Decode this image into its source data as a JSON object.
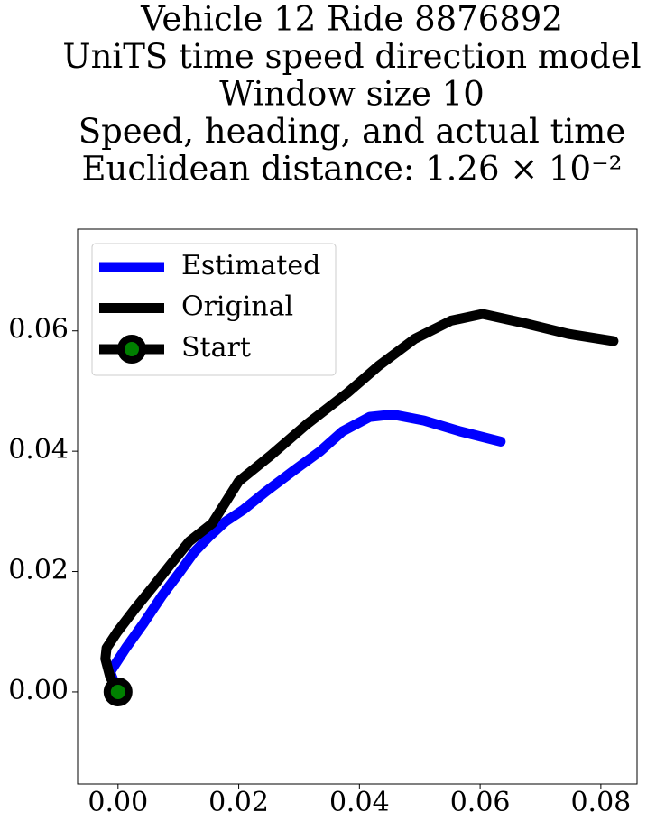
{
  "chart_data": {
    "type": "line",
    "title": [
      "Vehicle 12 Ride 8876892",
      "UniTS time speed direction model",
      "Window size 10",
      "Speed, heading, and actual time",
      "Euclidean distance: 1.26 × 10⁻²"
    ],
    "xlim": [
      -0.0067,
      0.086
    ],
    "ylim": [
      -0.0153,
      0.0769
    ],
    "xticks": [
      {
        "value": 0,
        "label": "0.00"
      },
      {
        "value": 0.02,
        "label": "0.02"
      },
      {
        "value": 0.04,
        "label": "0.04"
      },
      {
        "value": 0.06,
        "label": "0.06"
      },
      {
        "value": 0.08,
        "label": "0.08"
      }
    ],
    "yticks": [
      {
        "value": 0,
        "label": "0.00"
      },
      {
        "value": 0.02,
        "label": "0.02"
      },
      {
        "value": 0.04,
        "label": "0.04"
      },
      {
        "value": 0.06,
        "label": "0.06"
      }
    ],
    "legend": "upper left",
    "series": [
      {
        "name": "Estimated",
        "color": "#0000ff",
        "x": [
          0,
          -0.0013,
          0.0013,
          0.0043,
          0.0073,
          0.0103,
          0.0126,
          0.0151,
          0.0178,
          0.0208,
          0.0245,
          0.029,
          0.0335,
          0.0372,
          0.0417,
          0.0455,
          0.0507,
          0.0567,
          0.0634
        ],
        "y": [
          0,
          0.0033,
          0.0073,
          0.0115,
          0.016,
          0.02,
          0.0232,
          0.0258,
          0.0283,
          0.0303,
          0.0333,
          0.0367,
          0.04,
          0.0433,
          0.0457,
          0.0461,
          0.0451,
          0.0433,
          0.0416
        ]
      },
      {
        "name": "Original",
        "color": "#000000",
        "x": [
          0,
          -0.0013,
          -0.0021,
          -0.0019,
          -0.0001,
          0.0028,
          0.0058,
          0.0088,
          0.0118,
          0.0156,
          0.02,
          0.0253,
          0.0313,
          0.038,
          0.0432,
          0.0492,
          0.0552,
          0.0604,
          0.0672,
          0.0746,
          0.0821
        ],
        "y": [
          0,
          0.0025,
          0.0055,
          0.0073,
          0.01,
          0.0138,
          0.0175,
          0.0213,
          0.025,
          0.028,
          0.035,
          0.0393,
          0.0445,
          0.0497,
          0.0542,
          0.0587,
          0.0617,
          0.0628,
          0.0613,
          0.0595,
          0.0583
        ]
      },
      {
        "name": "Start",
        "color": "#000000",
        "marker_face": "#008000",
        "x": [
          0
        ],
        "y": [
          0
        ]
      }
    ]
  }
}
